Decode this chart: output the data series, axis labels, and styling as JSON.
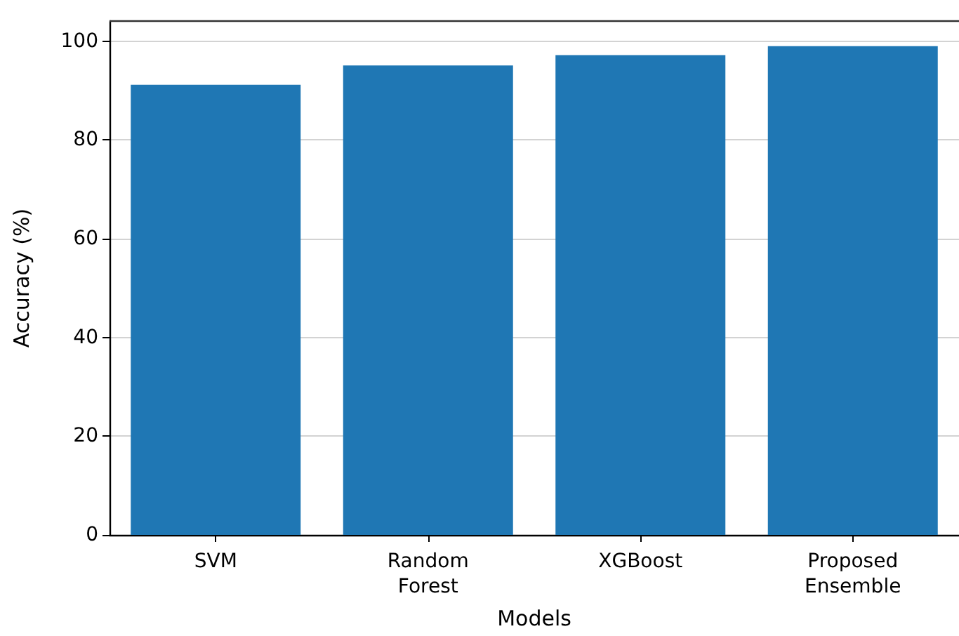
{
  "chart_data": {
    "type": "bar",
    "xlabel": "Models",
    "ylabel": "Accuracy (%)",
    "categories": [
      "SVM",
      "Random\nForest",
      "XGBoost",
      "Proposed\nEnsemble"
    ],
    "values": [
      91.2,
      95.1,
      97.2,
      99.0
    ],
    "color": "#1f77b4",
    "ylim": [
      0,
      104.1
    ],
    "yticks": [
      0,
      20,
      40,
      60,
      80,
      100
    ],
    "grid": "y"
  }
}
